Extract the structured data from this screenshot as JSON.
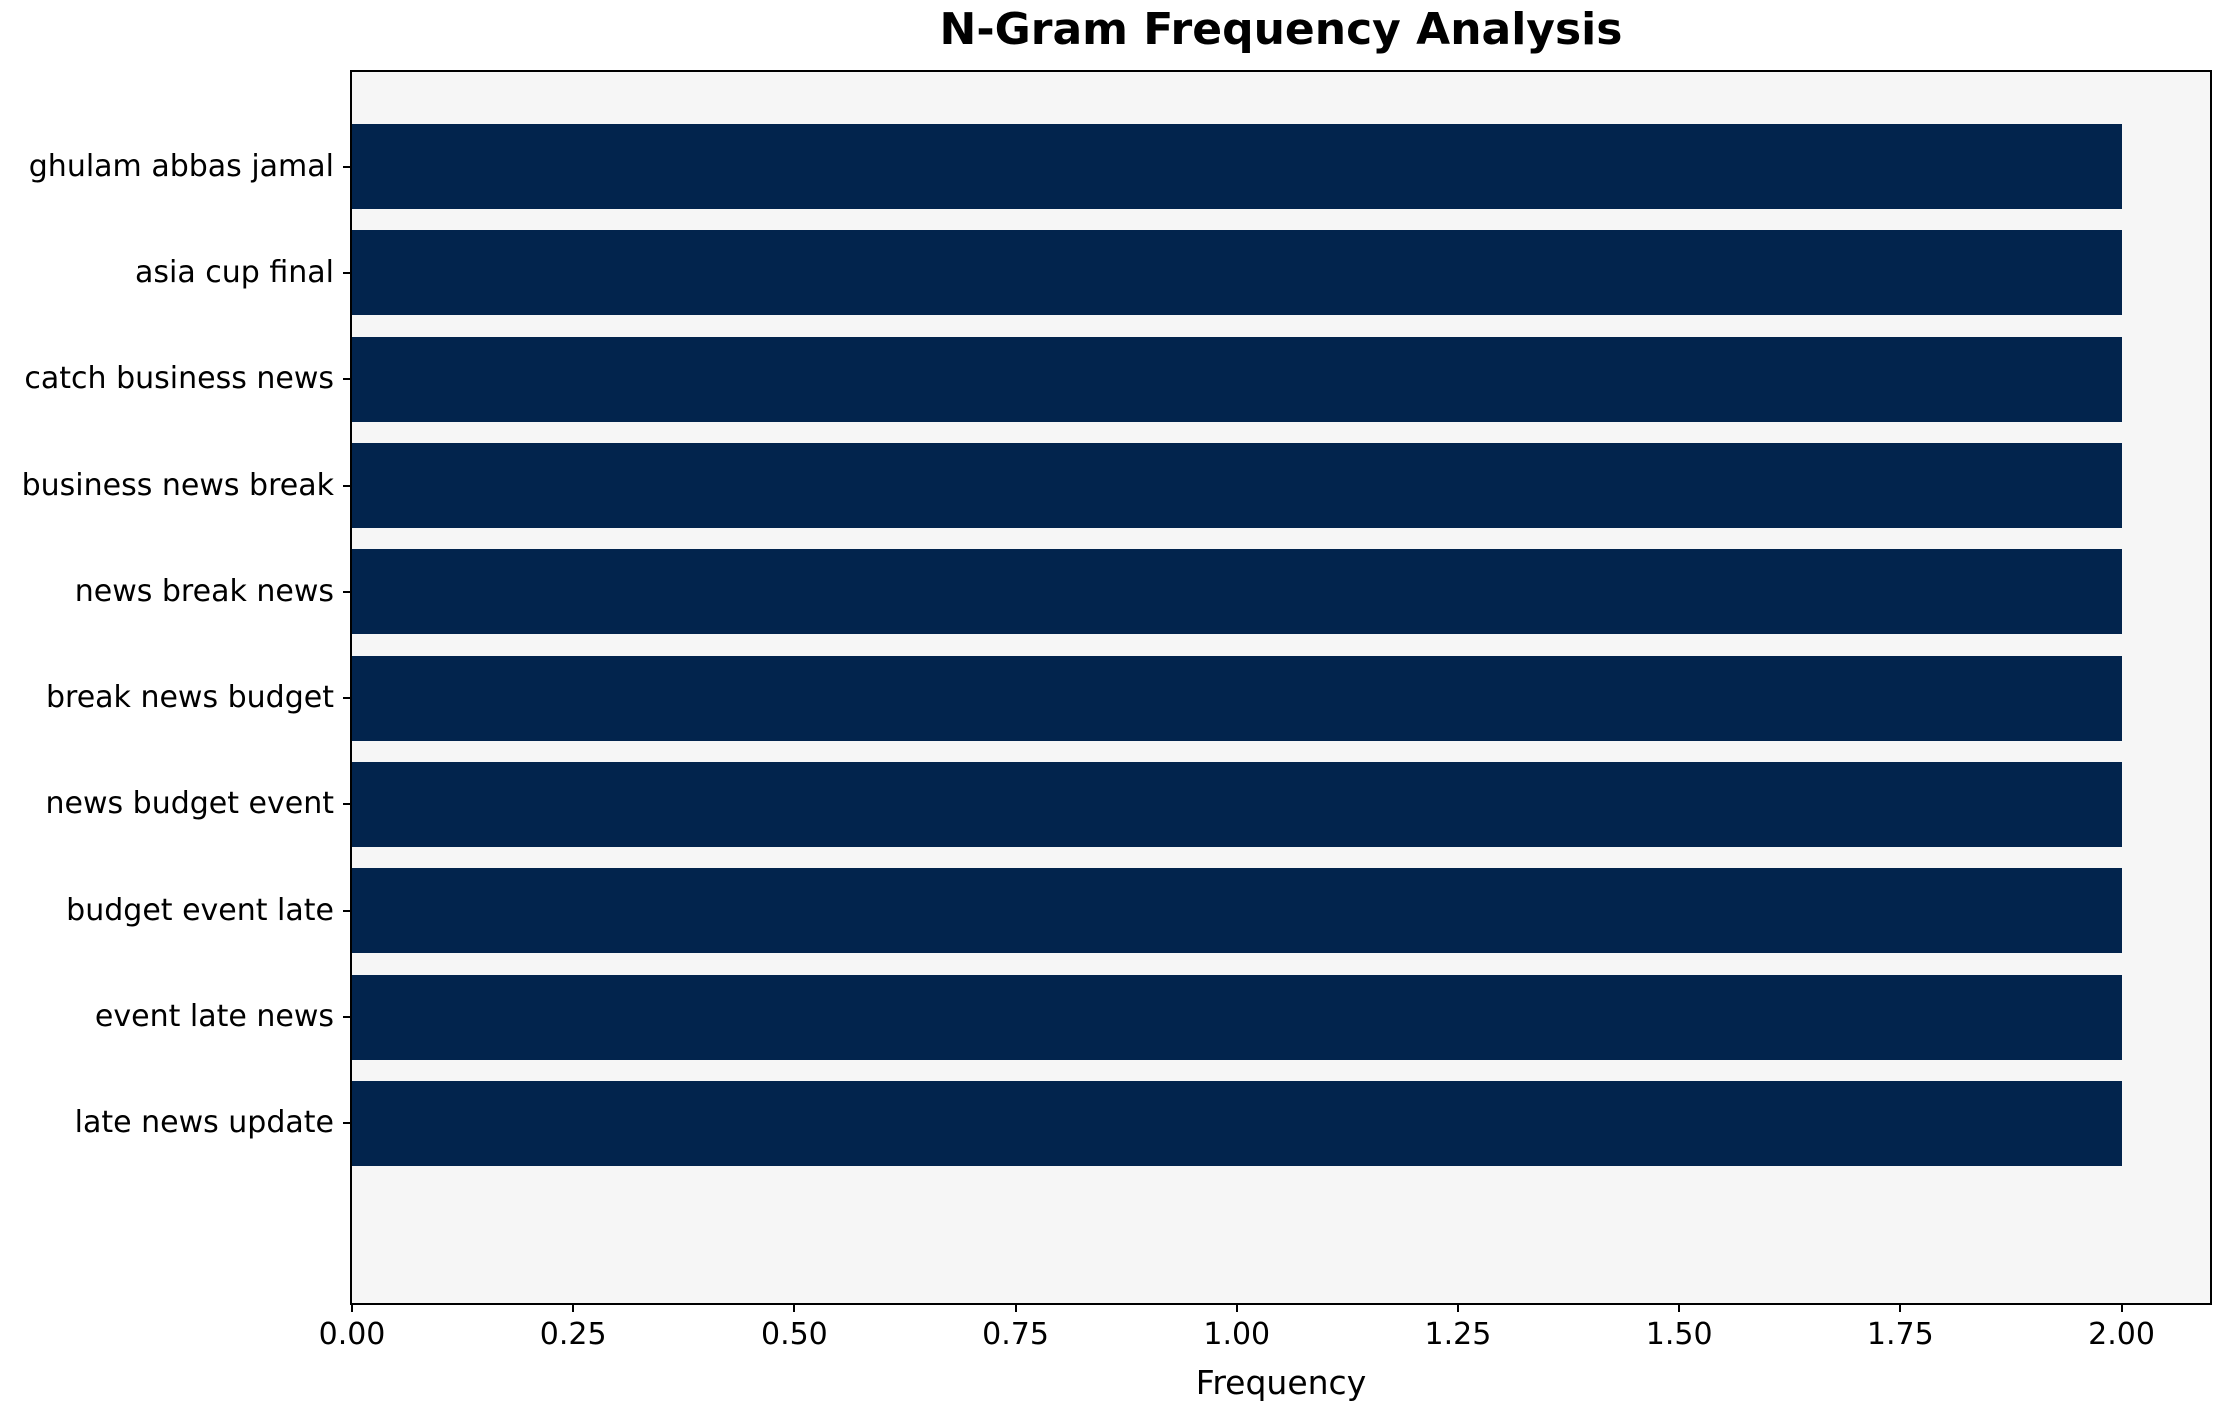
{
  "chart_data": {
    "type": "bar",
    "orientation": "horizontal",
    "title": "N-Gram Frequency Analysis",
    "xlabel": "Frequency",
    "ylabel": "",
    "categories": [
      "ghulam abbas jamal",
      "asia cup final",
      "catch business news",
      "business news break",
      "news break news",
      "break news budget",
      "news budget event",
      "budget event late",
      "event late news",
      "late news update"
    ],
    "values": [
      2,
      2,
      2,
      2,
      2,
      2,
      2,
      2,
      2,
      2
    ],
    "xlim": [
      0,
      2.1
    ],
    "xticks": [
      "0.00",
      "0.25",
      "0.50",
      "0.75",
      "1.00",
      "1.25",
      "1.50",
      "1.75",
      "2.00"
    ],
    "xtick_values": [
      0,
      0.25,
      0.5,
      0.75,
      1.0,
      1.25,
      1.5,
      1.75,
      2.0
    ],
    "grid": false,
    "legend": null,
    "colors": {
      "bar": "#02244d",
      "plot_bg": "#f6f6f6",
      "figure_bg": "#ffffff",
      "spine": "#000000",
      "text": "#000000"
    }
  }
}
